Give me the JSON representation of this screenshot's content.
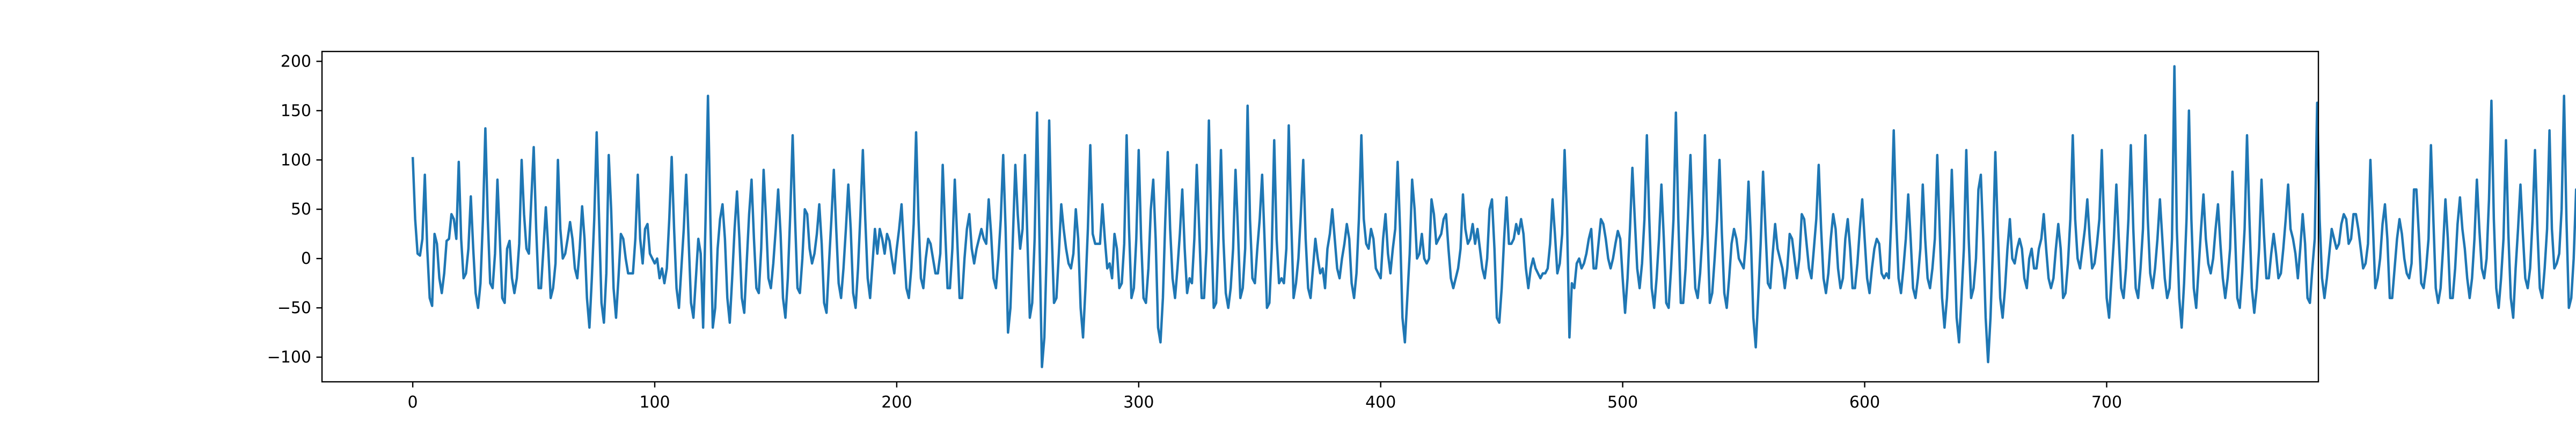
{
  "chart_data": {
    "type": "line",
    "title": "",
    "xlabel": "",
    "ylabel": "",
    "xlim": [
      -37.5,
      787.5
    ],
    "ylim": [
      -125,
      210
    ],
    "xticks": [
      0,
      100,
      200,
      300,
      400,
      500,
      600,
      700
    ],
    "yticks": [
      -100,
      -50,
      0,
      50,
      100,
      150,
      200
    ],
    "grid": false,
    "legend": "none",
    "series": [
      {
        "color": "#1f77b4",
        "x_start": 0,
        "x_step": 1,
        "y": [
          103,
          40,
          5,
          3,
          20,
          85,
          10,
          -40,
          -48,
          25,
          15,
          -20,
          -35,
          -15,
          18,
          20,
          45,
          40,
          20,
          98,
          20,
          -20,
          -15,
          10,
          63,
          10,
          -35,
          -50,
          -25,
          40,
          132,
          40,
          -25,
          -30,
          5,
          80,
          20,
          -40,
          -45,
          10,
          18,
          -20,
          -35,
          -20,
          15,
          100,
          45,
          10,
          5,
          60,
          113,
          30,
          -30,
          -30,
          10,
          52,
          10,
          -40,
          -30,
          -5,
          100,
          30,
          0,
          5,
          20,
          37,
          20,
          -10,
          -20,
          10,
          53,
          20,
          -40,
          -70,
          -20,
          40,
          128,
          40,
          -45,
          -65,
          -15,
          105,
          50,
          -30,
          -60,
          -20,
          25,
          20,
          0,
          -15,
          -15,
          -15,
          20,
          85,
          20,
          -5,
          30,
          35,
          5,
          0,
          -5,
          0,
          -20,
          -10,
          -25,
          -10,
          40,
          103,
          30,
          -30,
          -50,
          -10,
          30,
          85,
          20,
          -45,
          -60,
          -20,
          20,
          5,
          -70,
          40,
          165,
          40,
          -70,
          -50,
          10,
          40,
          55,
          20,
          -40,
          -65,
          -20,
          30,
          68,
          20,
          -40,
          -55,
          -5,
          45,
          80,
          20,
          -30,
          -35,
          10,
          90,
          40,
          -20,
          -30,
          -5,
          30,
          70,
          25,
          -40,
          -60,
          -20,
          45,
          125,
          40,
          -30,
          -35,
          0,
          50,
          45,
          10,
          -5,
          5,
          25,
          55,
          15,
          -45,
          -55,
          -5,
          40,
          90,
          30,
          -25,
          -40,
          -10,
          30,
          75,
          30,
          -35,
          -50,
          -10,
          45,
          110,
          40,
          -20,
          -40,
          -5,
          30,
          5,
          30,
          20,
          5,
          25,
          18,
          0,
          -15,
          10,
          30,
          55,
          10,
          -30,
          -40,
          -10,
          35,
          128,
          40,
          -20,
          -30,
          0,
          20,
          15,
          0,
          -15,
          -15,
          5,
          95,
          30,
          -30,
          -30,
          10,
          80,
          20,
          -40,
          -40,
          0,
          30,
          45,
          10,
          -5,
          10,
          20,
          30,
          20,
          15,
          60,
          25,
          -20,
          -30,
          0,
          40,
          105,
          30,
          -75,
          -50,
          20,
          95,
          45,
          10,
          30,
          105,
          20,
          -60,
          -45,
          20,
          148,
          20,
          -110,
          -80,
          10,
          140,
          30,
          -45,
          -40,
          5,
          55,
          30,
          10,
          -5,
          -10,
          5,
          50,
          20,
          -50,
          -80,
          -30,
          30,
          115,
          25,
          15,
          15,
          15,
          55,
          20,
          -10,
          -5,
          -20,
          25,
          10,
          -30,
          -25,
          15,
          125,
          30,
          -40,
          -30,
          20,
          110,
          20,
          -40,
          -45,
          -10,
          50,
          80,
          20,
          -70,
          -85,
          -40,
          40,
          108,
          30,
          -20,
          -40,
          -10,
          25,
          70,
          10,
          -35,
          -20,
          -25,
          20,
          95,
          30,
          -40,
          -40,
          10,
          140,
          30,
          -50,
          -45,
          20,
          110,
          20,
          -35,
          -50,
          -30,
          10,
          90,
          30,
          -40,
          -30,
          10,
          155,
          40,
          -20,
          -25,
          10,
          40,
          85,
          20,
          -50,
          -45,
          10,
          120,
          20,
          -25,
          -20,
          -25,
          10,
          135,
          40,
          -40,
          -25,
          0,
          45,
          100,
          20,
          -30,
          -40,
          -10,
          20,
          0,
          -15,
          -10,
          -30,
          10,
          25,
          50,
          20,
          -10,
          -20,
          0,
          15,
          35,
          20,
          -25,
          -40,
          -15,
          40,
          125,
          40,
          15,
          10,
          30,
          20,
          -10,
          -15,
          -20,
          20,
          45,
          5,
          -15,
          10,
          30,
          98,
          30,
          -60,
          -85,
          -40,
          5,
          80,
          50,
          0,
          5,
          25,
          0,
          -5,
          0,
          60,
          45,
          15,
          20,
          25,
          40,
          45,
          10,
          -20,
          -30,
          -20,
          -10,
          10,
          65,
          30,
          15,
          20,
          35,
          15,
          30,
          10,
          -10,
          -20,
          0,
          50,
          60,
          10,
          -60,
          -65,
          -30,
          20,
          62,
          15,
          15,
          20,
          35,
          25,
          40,
          25,
          -10,
          -30,
          -10,
          0,
          -10,
          -15,
          -20,
          -15,
          -15,
          -10,
          15,
          60,
          25,
          -15,
          -5,
          25,
          110,
          40,
          -80,
          -25,
          -30,
          -5,
          0,
          -10,
          -5,
          5,
          20,
          30,
          -10,
          -10,
          15,
          40,
          35,
          20,
          0,
          -10,
          0,
          15,
          28,
          20,
          -20,
          -55,
          -20,
          30,
          92,
          40,
          -10,
          -30,
          -5,
          40,
          125,
          40,
          -30,
          -50,
          -20,
          20,
          75,
          20,
          -45,
          -50,
          -10,
          40,
          148,
          40,
          -45,
          -45,
          -10,
          45,
          105,
          30,
          -30,
          -40,
          -15,
          25,
          125,
          30,
          -45,
          -35,
          0,
          40,
          100,
          25,
          -35,
          -50,
          -20,
          15,
          30,
          20,
          0,
          -5,
          -10,
          20,
          78,
          20,
          -60,
          -90,
          -40,
          15,
          88,
          30,
          -25,
          -30,
          5,
          35,
          10,
          0,
          -10,
          -30,
          -10,
          25,
          20,
          0,
          -20,
          0,
          45,
          40,
          15,
          -10,
          -20,
          10,
          40,
          95,
          30,
          -20,
          -35,
          -15,
          20,
          45,
          30,
          -10,
          -30,
          -20,
          20,
          40,
          10,
          -30,
          -30,
          -5,
          30,
          60,
          20,
          -20,
          -35,
          -10,
          10,
          20,
          15,
          -15,
          -20,
          -15,
          -20,
          40,
          130,
          40,
          -20,
          -35,
          -10,
          20,
          65,
          20,
          -30,
          -40,
          -20,
          10,
          75,
          20,
          -20,
          -30,
          -10,
          20,
          105,
          30,
          -40,
          -70,
          -40,
          10,
          90,
          20,
          -60,
          -85,
          -40,
          10,
          110,
          20,
          -40,
          -30,
          0,
          70,
          85,
          20,
          -60,
          -105,
          -60,
          10,
          108,
          30,
          -40,
          -60,
          -30,
          10,
          40,
          0,
          -5,
          10,
          20,
          10,
          -20,
          -30,
          0,
          10,
          -10,
          -10,
          10,
          20,
          45,
          10,
          -20,
          -30,
          -20,
          10,
          35,
          10,
          -40,
          -35,
          -5,
          40,
          125,
          40,
          0,
          -10,
          10,
          30,
          60,
          20,
          -10,
          -5,
          15,
          40,
          110,
          30,
          -40,
          -60,
          -20,
          20,
          75,
          20,
          -30,
          -40,
          -10,
          40,
          115,
          30,
          -30,
          -40,
          -10,
          30,
          125,
          40,
          -15,
          -30,
          -10,
          20,
          60,
          20,
          -20,
          -40,
          -30,
          20,
          195,
          30,
          -40,
          -70,
          -25,
          40,
          150,
          40,
          -30,
          -50,
          -10,
          30,
          65,
          20,
          -5,
          -15,
          0,
          30,
          55,
          15,
          -20,
          -40,
          -20,
          10,
          88,
          30,
          -40,
          -50,
          -15,
          30,
          125,
          40,
          -30,
          -55,
          -30,
          10,
          80,
          25,
          -20,
          -20,
          5,
          25,
          5,
          -20,
          -15,
          10,
          40,
          75,
          30,
          20,
          5,
          -20,
          10,
          45,
          15,
          -40,
          -45,
          -10,
          20,
          158,
          40,
          -20,
          -40,
          -20,
          5,
          30,
          20,
          10,
          15,
          35,
          45,
          40,
          15,
          20,
          45,
          45,
          30,
          10,
          -10,
          -5,
          15,
          100,
          35,
          -30,
          -20,
          0,
          35,
          55,
          20,
          -40,
          -40,
          -10,
          20,
          40,
          25,
          0,
          -15,
          -20,
          -5,
          70,
          70,
          25,
          -25,
          -30,
          -10,
          20,
          115,
          40,
          -30,
          -45,
          -30,
          10,
          60,
          20,
          -40,
          -40,
          -10,
          35,
          62,
          30,
          10,
          -20,
          -40,
          -20,
          20,
          80,
          30,
          -10,
          -20,
          0,
          60,
          160,
          40,
          -30,
          -50,
          -20,
          20,
          120,
          25,
          -40,
          -60,
          -10,
          30,
          75,
          25,
          -20,
          -30,
          -10,
          40,
          110,
          30,
          -30,
          -40,
          -10,
          30,
          130,
          30,
          -10,
          -5,
          5,
          50,
          165,
          40,
          -50,
          -40,
          0,
          70,
          20,
          -40,
          -20,
          15,
          15,
          -40
        ]
      }
    ]
  }
}
